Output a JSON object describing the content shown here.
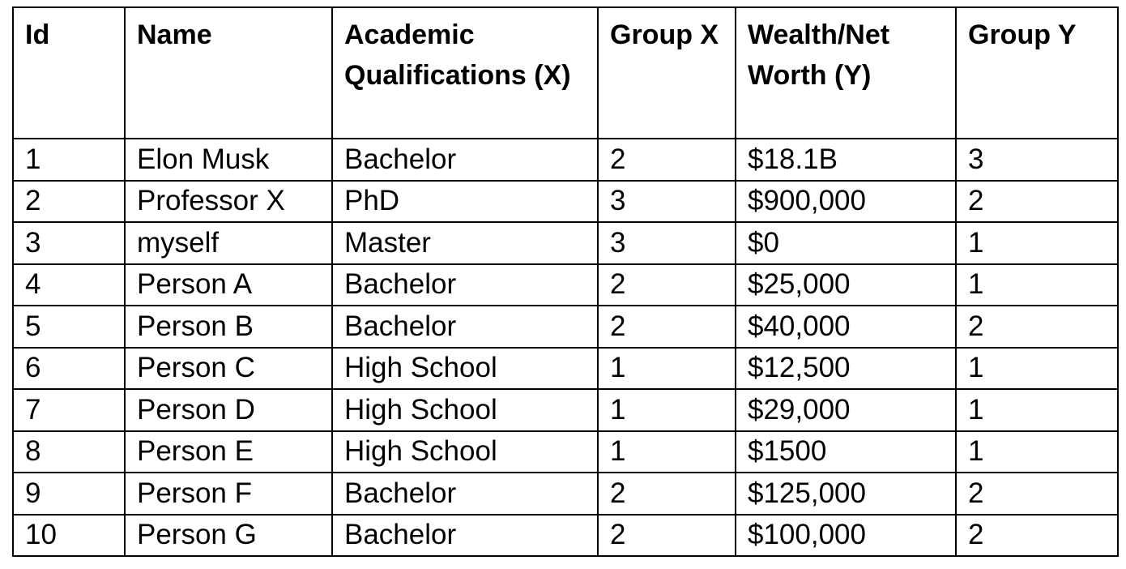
{
  "table": {
    "headers": [
      [
        "Id"
      ],
      [
        "Name"
      ],
      [
        "Academic",
        "Qualifications (X)"
      ],
      [
        "Group X"
      ],
      [
        "Wealth/Net",
        "Worth (Y)"
      ],
      [
        "Group Y"
      ]
    ],
    "rows": [
      [
        "1",
        "Elon Musk",
        "Bachelor",
        "2",
        "$18.1B",
        "3"
      ],
      [
        "2",
        "Professor X",
        "PhD",
        "3",
        "$900,000",
        "2"
      ],
      [
        "3",
        "myself",
        "Master",
        "3",
        "$0",
        "1"
      ],
      [
        "4",
        "Person A",
        "Bachelor",
        "2",
        "$25,000",
        "1"
      ],
      [
        "5",
        "Person B",
        "Bachelor",
        "2",
        "$40,000",
        "2"
      ],
      [
        "6",
        "Person C",
        "High School",
        "1",
        "$12,500",
        "1"
      ],
      [
        "7",
        "Person D",
        "High School",
        "1",
        "$29,000",
        "1"
      ],
      [
        "8",
        "Person E",
        "High School",
        "1",
        "$1500",
        "1"
      ],
      [
        "9",
        "Person F",
        "Bachelor",
        "2",
        "$125,000",
        "2"
      ],
      [
        "10",
        "Person G",
        "Bachelor",
        "2",
        "$100,000",
        "2"
      ]
    ]
  }
}
